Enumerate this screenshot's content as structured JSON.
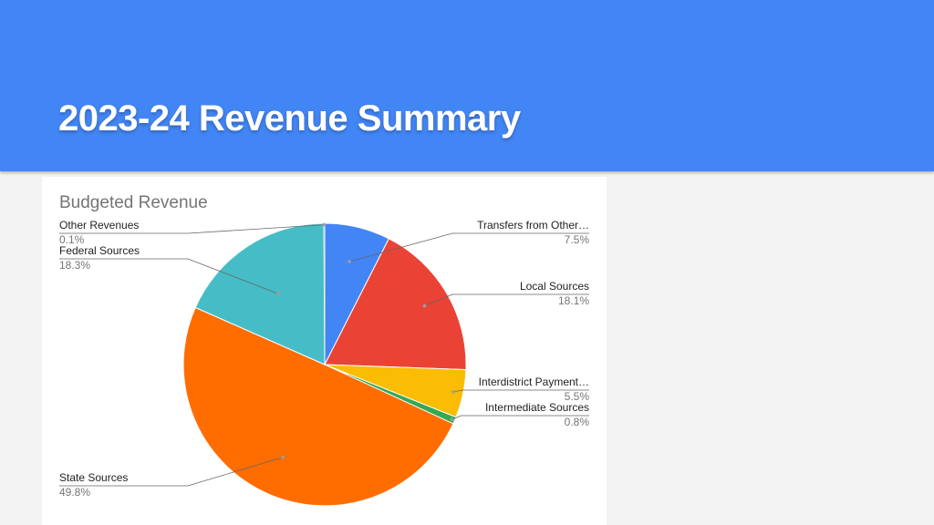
{
  "slide": {
    "title": "2023-24 Revenue Summary"
  },
  "colors": {
    "header_bg": "#4285f4",
    "title_text": "#ffffff"
  },
  "chart_data": {
    "type": "pie",
    "title": "Budgeted Revenue",
    "slices": [
      {
        "label": "Transfers from Other…",
        "pct_label": "7.5%",
        "value": 7.5,
        "color": "#4285f4",
        "side": "right"
      },
      {
        "label": "Local Sources",
        "pct_label": "18.1%",
        "value": 18.1,
        "color": "#ea4335",
        "side": "right"
      },
      {
        "label": "Interdistrict Payment…",
        "pct_label": "5.5%",
        "value": 5.5,
        "color": "#fbbc04",
        "side": "right"
      },
      {
        "label": "Intermediate Sources",
        "pct_label": "0.8%",
        "value": 0.8,
        "color": "#34a853",
        "side": "right"
      },
      {
        "label": "State Sources",
        "pct_label": "49.8%",
        "value": 49.8,
        "color": "#ff6d01",
        "side": "left"
      },
      {
        "label": "Federal Sources",
        "pct_label": "18.3%",
        "value": 18.3,
        "color": "#46bdc6",
        "side": "left"
      },
      {
        "label": "Other Revenues",
        "pct_label": "0.1%",
        "value": 0.1,
        "color": "#7baaf7",
        "side": "left"
      }
    ],
    "legend": "labels with leader lines",
    "start_angle": "12 o'clock, clockwise"
  }
}
